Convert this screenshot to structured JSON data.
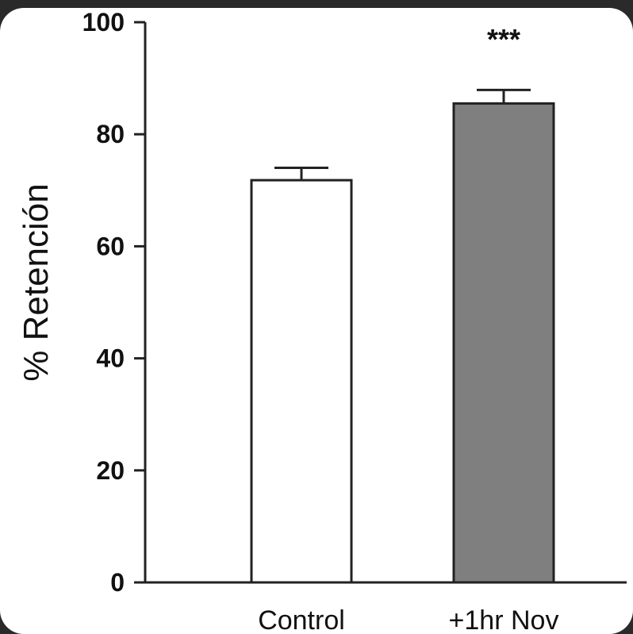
{
  "chart_data": {
    "type": "bar",
    "categories": [
      "Control",
      "+1hr Nov"
    ],
    "values": [
      71.8,
      85.5
    ],
    "errors": [
      2.2,
      2.4
    ],
    "colors": [
      "#ffffff",
      "#7f7f7f"
    ],
    "annotations": [
      "",
      "***"
    ],
    "ylabel": "% Retención",
    "xlabel": "",
    "ylim": [
      0,
      100
    ],
    "yticks": [
      "0",
      "20",
      "40",
      "60",
      "80",
      "100"
    ],
    "grid": false
  }
}
